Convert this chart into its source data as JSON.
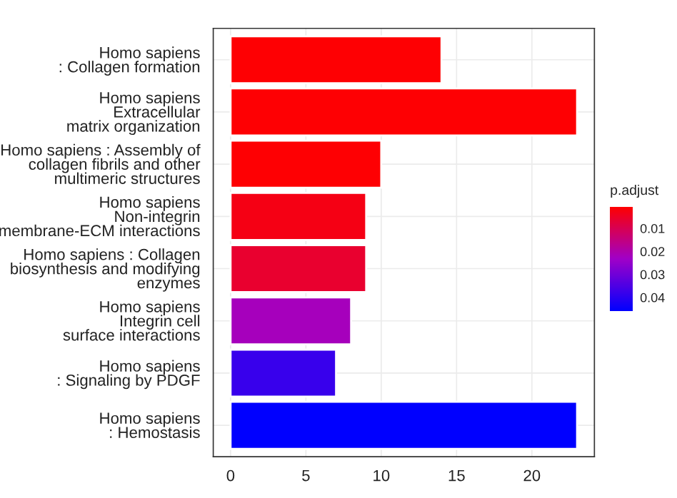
{
  "chart_data": {
    "type": "bar",
    "orientation": "horizontal",
    "categories": [
      "Homo sapiens\n: Collagen formation",
      "Homo sapiens\nExtracellular\nmatrix organization",
      "Homo sapiens : Assembly of\ncollagen fibrils and other\nmultimeric structures",
      "Homo sapiens\nNon-integrin\nmembrane-ECM interactions",
      "Homo sapiens : Collagen\nbiosynthesis and modifying\nenzymes",
      "Homo sapiens\nIntegrin cell\nsurface interactions",
      "Homo sapiens\n: Signaling by PDGF",
      "Homo sapiens\n: Hemostasis"
    ],
    "values": [
      14,
      23,
      10,
      9,
      9,
      8,
      7,
      23
    ],
    "cvalues": [
      0.001,
      0.001,
      0.001,
      0.003,
      0.006,
      0.022,
      0.038,
      0.046
    ],
    "clabel": "p.adjust",
    "clim": [
      0.0006,
      0.046
    ],
    "cticks": [
      0.01,
      0.02,
      0.03,
      0.04
    ],
    "xlim": [
      -1.15,
      24.15
    ],
    "xticks": [
      0,
      5,
      10,
      15,
      20
    ],
    "grid": true
  }
}
